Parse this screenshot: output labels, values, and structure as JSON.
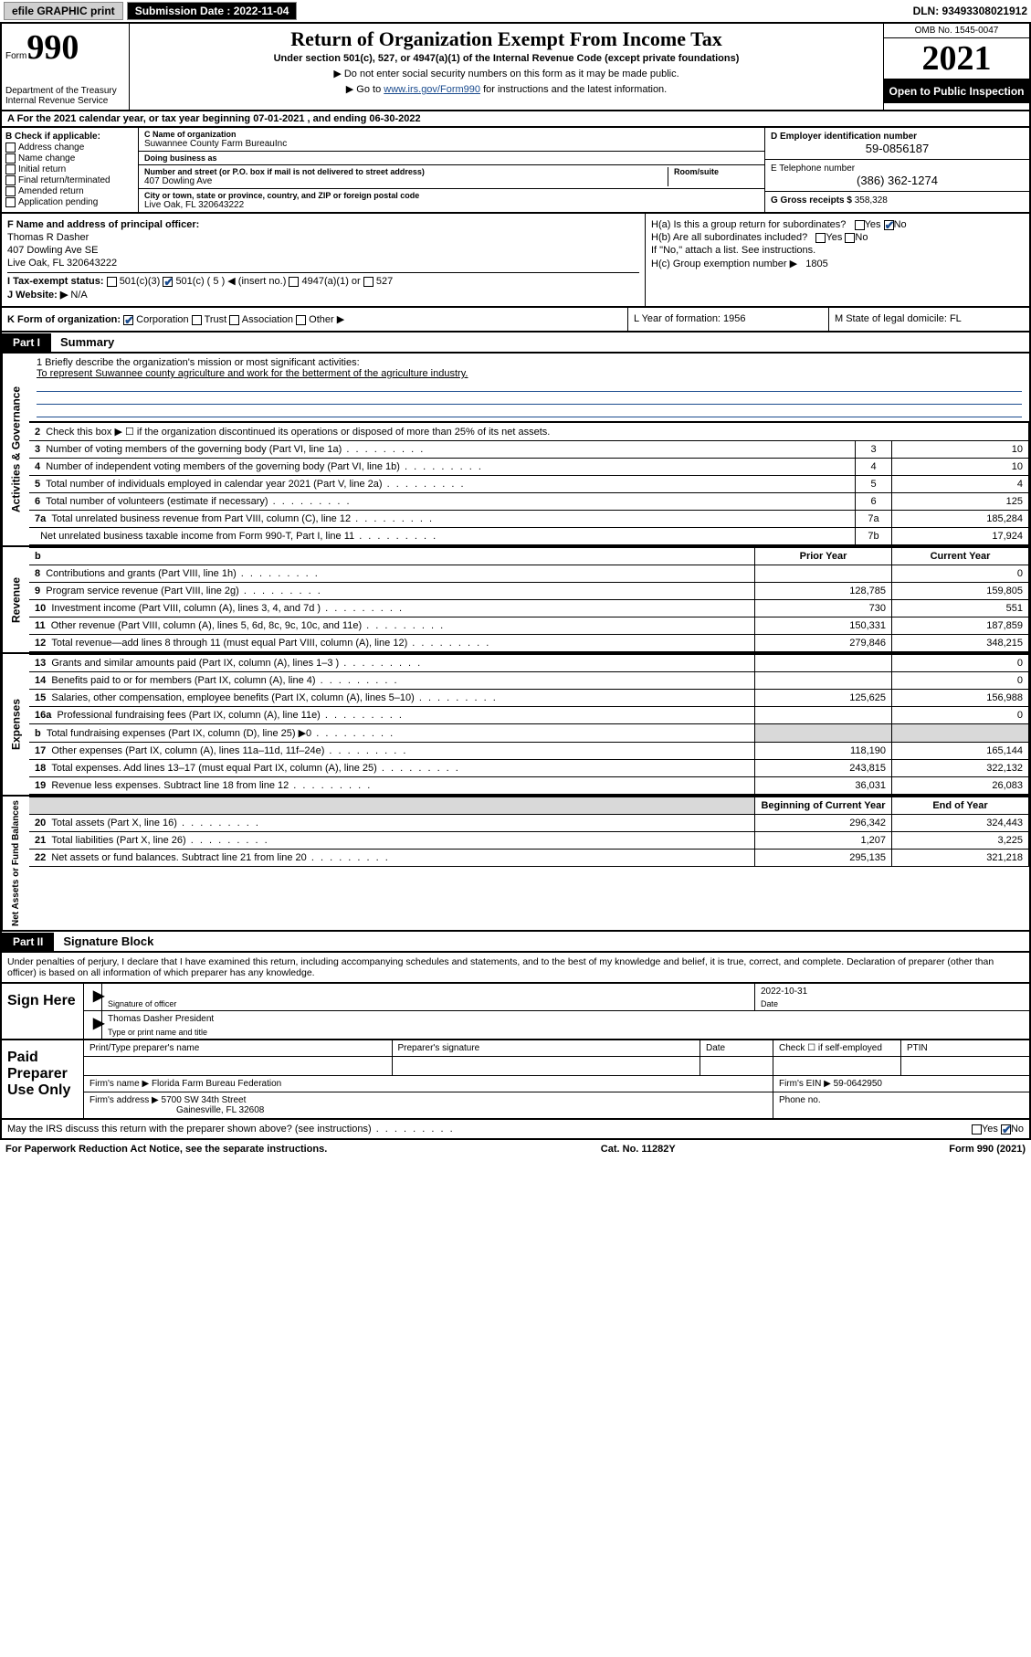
{
  "topbar": {
    "efile": "efile GRAPHIC print",
    "submission_label": "Submission Date : 2022-11-04",
    "dln": "DLN: 93493308021912"
  },
  "header": {
    "form_label": "Form",
    "form_num": "990",
    "dept": "Department of the Treasury",
    "irs": "Internal Revenue Service",
    "title": "Return of Organization Exempt From Income Tax",
    "subtitle": "Under section 501(c), 527, or 4947(a)(1) of the Internal Revenue Code (except private foundations)",
    "note1": "▶ Do not enter social security numbers on this form as it may be made public.",
    "note2_pre": "▶ Go to ",
    "note2_link": "www.irs.gov/Form990",
    "note2_post": " for instructions and the latest information.",
    "omb": "OMB No. 1545-0047",
    "year": "2021",
    "open": "Open to Public Inspection"
  },
  "rowA": "A For the 2021 calendar year, or tax year beginning 07-01-2021   , and ending 06-30-2022",
  "boxB": {
    "title": "B Check if applicable:",
    "items": [
      "Address change",
      "Name change",
      "Initial return",
      "Final return/terminated",
      "Amended return",
      "Application pending"
    ]
  },
  "boxC": {
    "name_label": "C Name of organization",
    "name": "Suwannee County Farm BureauInc",
    "dba_label": "Doing business as",
    "street_label": "Number and street (or P.O. box if mail is not delivered to street address)",
    "room_label": "Room/suite",
    "street": "407 Dowling Ave",
    "city_label": "City or town, state or province, country, and ZIP or foreign postal code",
    "city": "Live Oak, FL  320643222"
  },
  "boxD": {
    "ein_label": "D Employer identification number",
    "ein": "59-0856187",
    "phone_label": "E Telephone number",
    "phone": "(386) 362-1274",
    "gross_label": "G Gross receipts $",
    "gross": "358,328"
  },
  "boxF": {
    "label": "F Name and address of principal officer:",
    "name": "Thomas R Dasher",
    "addr1": "407 Dowling Ave SE",
    "addr2": "Live Oak, FL  320643222"
  },
  "boxH": {
    "a": "H(a)  Is this a group return for subordinates?",
    "b": "H(b)  Are all subordinates included?",
    "note": "If \"No,\" attach a list. See instructions.",
    "c": "H(c)  Group exemption number ▶",
    "c_val": "1805"
  },
  "boxI": {
    "label": "I   Tax-exempt status:",
    "opts": [
      "501(c)(3)",
      "501(c) ( 5 ) ◀ (insert no.)",
      "4947(a)(1) or",
      "527"
    ]
  },
  "boxJ": {
    "label": "J   Website: ▶",
    "val": "N/A"
  },
  "rowK": {
    "label": "K Form of organization:",
    "opts": [
      "Corporation",
      "Trust",
      "Association",
      "Other ▶"
    ],
    "L": "L Year of formation: 1956",
    "M": "M State of legal domicile: FL"
  },
  "partI": {
    "tag": "Part I",
    "title": "Summary"
  },
  "mission": {
    "line1": "1   Briefly describe the organization's mission or most significant activities:",
    "text": "To represent Suwannee county agriculture and work for the betterment of the agriculture industry."
  },
  "gov_rows": [
    {
      "n": "2",
      "desc": "Check this box ▶ ☐  if the organization discontinued its operations or disposed of more than 25% of its net assets.",
      "num": "",
      "val": ""
    },
    {
      "n": "3",
      "desc": "Number of voting members of the governing body (Part VI, line 1a)",
      "num": "3",
      "val": "10"
    },
    {
      "n": "4",
      "desc": "Number of independent voting members of the governing body (Part VI, line 1b)",
      "num": "4",
      "val": "10"
    },
    {
      "n": "5",
      "desc": "Total number of individuals employed in calendar year 2021 (Part V, line 2a)",
      "num": "5",
      "val": "4"
    },
    {
      "n": "6",
      "desc": "Total number of volunteers (estimate if necessary)",
      "num": "6",
      "val": "125"
    },
    {
      "n": "7a",
      "desc": "Total unrelated business revenue from Part VIII, column (C), line 12",
      "num": "7a",
      "val": "185,284"
    },
    {
      "n": "",
      "desc": "Net unrelated business taxable income from Form 990-T, Part I, line 11",
      "num": "7b",
      "val": "17,924"
    }
  ],
  "two_col_header": {
    "b": "b",
    "prior": "Prior Year",
    "current": "Current Year"
  },
  "revenue_rows": [
    {
      "n": "8",
      "desc": "Contributions and grants (Part VIII, line 1h)",
      "prior": "",
      "curr": "0"
    },
    {
      "n": "9",
      "desc": "Program service revenue (Part VIII, line 2g)",
      "prior": "128,785",
      "curr": "159,805"
    },
    {
      "n": "10",
      "desc": "Investment income (Part VIII, column (A), lines 3, 4, and 7d )",
      "prior": "730",
      "curr": "551"
    },
    {
      "n": "11",
      "desc": "Other revenue (Part VIII, column (A), lines 5, 6d, 8c, 9c, 10c, and 11e)",
      "prior": "150,331",
      "curr": "187,859"
    },
    {
      "n": "12",
      "desc": "Total revenue—add lines 8 through 11 (must equal Part VIII, column (A), line 12)",
      "prior": "279,846",
      "curr": "348,215"
    }
  ],
  "expense_rows": [
    {
      "n": "13",
      "desc": "Grants and similar amounts paid (Part IX, column (A), lines 1–3 )",
      "prior": "",
      "curr": "0"
    },
    {
      "n": "14",
      "desc": "Benefits paid to or for members (Part IX, column (A), line 4)",
      "prior": "",
      "curr": "0"
    },
    {
      "n": "15",
      "desc": "Salaries, other compensation, employee benefits (Part IX, column (A), lines 5–10)",
      "prior": "125,625",
      "curr": "156,988"
    },
    {
      "n": "16a",
      "desc": "Professional fundraising fees (Part IX, column (A), line 11e)",
      "prior": "",
      "curr": "0"
    },
    {
      "n": "b",
      "desc": "Total fundraising expenses (Part IX, column (D), line 25) ▶0",
      "prior": "shade",
      "curr": "shade"
    },
    {
      "n": "17",
      "desc": "Other expenses (Part IX, column (A), lines 11a–11d, 11f–24e)",
      "prior": "118,190",
      "curr": "165,144"
    },
    {
      "n": "18",
      "desc": "Total expenses. Add lines 13–17 (must equal Part IX, column (A), line 25)",
      "prior": "243,815",
      "curr": "322,132"
    },
    {
      "n": "19",
      "desc": "Revenue less expenses. Subtract line 18 from line 12",
      "prior": "36,031",
      "curr": "26,083"
    }
  ],
  "net_header": {
    "beg": "Beginning of Current Year",
    "end": "End of Year"
  },
  "net_rows": [
    {
      "n": "20",
      "desc": "Total assets (Part X, line 16)",
      "prior": "296,342",
      "curr": "324,443"
    },
    {
      "n": "21",
      "desc": "Total liabilities (Part X, line 26)",
      "prior": "1,207",
      "curr": "3,225"
    },
    {
      "n": "22",
      "desc": "Net assets or fund balances. Subtract line 21 from line 20",
      "prior": "295,135",
      "curr": "321,218"
    }
  ],
  "partII": {
    "tag": "Part II",
    "title": "Signature Block"
  },
  "sig_decl": "Under penalties of perjury, I declare that I have examined this return, including accompanying schedules and statements, and to the best of my knowledge and belief, it is true, correct, and complete. Declaration of preparer (other than officer) is based on all information of which preparer has any knowledge.",
  "sign_here": {
    "label": "Sign Here",
    "sig_label": "Signature of officer",
    "date": "2022-10-31",
    "date_label": "Date",
    "name": "Thomas Dasher President",
    "name_label": "Type or print name and title"
  },
  "paid_prep": {
    "label": "Paid Preparer Use Only",
    "headers": [
      "Print/Type preparer's name",
      "Preparer's signature",
      "Date",
      "Check ☐ if self-employed",
      "PTIN"
    ],
    "firm_label": "Firm's name    ▶",
    "firm_name": "Florida Farm Bureau Federation",
    "ein_label": "Firm's EIN ▶",
    "ein": "59-0642950",
    "addr_label": "Firm's address ▶",
    "addr1": "5700 SW 34th Street",
    "addr2": "Gainesville, FL  32608",
    "phone_label": "Phone no."
  },
  "discuss": "May the IRS discuss this return with the preparer shown above? (see instructions)",
  "footer": {
    "left": "For Paperwork Reduction Act Notice, see the separate instructions.",
    "mid": "Cat. No. 11282Y",
    "right": "Form 990 (2021)"
  },
  "vlabels": {
    "gov": "Activities & Governance",
    "rev": "Revenue",
    "exp": "Expenses",
    "net": "Net Assets or Fund Balances"
  }
}
